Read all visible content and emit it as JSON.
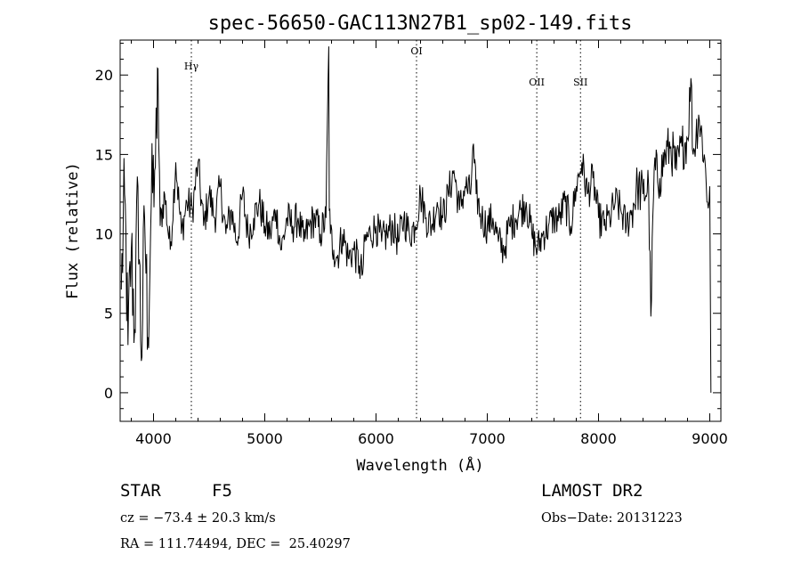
{
  "chart_data": {
    "type": "line",
    "title": "spec-56650-GAC113N27B1_sp02-149.fits",
    "xlabel": "Wavelength (Å)",
    "ylabel": "Flux (relative)",
    "xlim": [
      3700,
      9100
    ],
    "ylim": [
      -1.8,
      22.2
    ],
    "xticks": [
      4000,
      5000,
      6000,
      7000,
      8000,
      9000
    ],
    "yticks": [
      0,
      5,
      10,
      15,
      20
    ],
    "grid": false,
    "legend": "none",
    "line_color": "#000000",
    "lines": [
      {
        "label": "Hγ",
        "x": 4340
      },
      {
        "label": "OI",
        "x": 6364
      },
      {
        "label": "OII",
        "x": 7445
      },
      {
        "label": "SII",
        "x": 7838
      }
    ],
    "series": [
      {
        "x": [
          3710,
          3740,
          3770,
          3800,
          3830,
          3860,
          3890,
          3920,
          3950,
          3980,
          4010,
          4030,
          4040,
          4060,
          4100,
          4150,
          4200,
          4250,
          4300,
          4350,
          4400,
          4450,
          4500,
          4550,
          4600,
          4650,
          4700,
          4750,
          4800,
          4850,
          4900,
          4950,
          5000,
          5050,
          5100,
          5150,
          5200,
          5250,
          5300,
          5350,
          5400,
          5450,
          5500,
          5550,
          5575,
          5580,
          5590,
          5620,
          5650,
          5700,
          5750,
          5800,
          5850,
          5880,
          5900,
          5950,
          6000,
          6050,
          6100,
          6150,
          6200,
          6250,
          6300,
          6350,
          6400,
          6450,
          6500,
          6550,
          6600,
          6650,
          6700,
          6750,
          6800,
          6850,
          6870,
          6900,
          6950,
          7000,
          7050,
          7100,
          7150,
          7200,
          7250,
          7300,
          7350,
          7400,
          7450,
          7500,
          7550,
          7600,
          7650,
          7700,
          7750,
          7800,
          7850,
          7900,
          7950,
          8000,
          8050,
          8100,
          8150,
          8200,
          8250,
          8300,
          8350,
          8400,
          8450,
          8470,
          8500,
          8550,
          8600,
          8650,
          8700,
          8750,
          8800,
          8830,
          8850,
          8900,
          8950,
          8980,
          9000,
          9010
        ],
        "y": [
          6.5,
          12.5,
          3.0,
          9.0,
          4.0,
          13.0,
          2.0,
          11.0,
          3.5,
          12.0,
          14.0,
          16.0,
          20.4,
          10.5,
          12.5,
          9.0,
          14.5,
          10.0,
          12.0,
          11.5,
          14.5,
          10.5,
          12.5,
          11.0,
          13.0,
          10.0,
          11.5,
          9.5,
          12.5,
          10.0,
          11.0,
          12.0,
          10.5,
          10.0,
          11.5,
          9.0,
          11.0,
          10.5,
          11.0,
          9.5,
          10.5,
          11.0,
          10.0,
          11.0,
          21.8,
          11.5,
          10.0,
          9.0,
          8.5,
          10.0,
          8.5,
          9.0,
          8.0,
          7.5,
          9.5,
          10.0,
          10.5,
          9.5,
          10.0,
          10.5,
          9.5,
          11.0,
          10.0,
          10.5,
          12.5,
          11.0,
          10.5,
          12.0,
          11.0,
          12.5,
          14.0,
          11.5,
          13.0,
          12.5,
          15.5,
          12.5,
          11.0,
          10.5,
          11.0,
          9.5,
          9.0,
          10.5,
          11.0,
          11.5,
          12.0,
          10.0,
          9.0,
          10.0,
          10.5,
          11.0,
          11.0,
          12.0,
          10.5,
          13.0,
          14.5,
          12.5,
          13.5,
          11.0,
          10.5,
          11.0,
          12.0,
          11.5,
          10.5,
          11.5,
          13.0,
          12.5,
          13.0,
          4.8,
          14.0,
          13.5,
          15.0,
          15.5,
          14.0,
          15.5,
          16.0,
          19.8,
          15.0,
          17.5,
          15.0,
          12.0,
          13.0,
          0.0
        ]
      }
    ]
  },
  "info": {
    "class_label": "STAR",
    "subclass_label": "F5",
    "cz": "cz = −73.4 ± 20.3 km/s",
    "radec": "RA = 111.74494, DEC =  25.40297",
    "survey": "LAMOST DR2",
    "obs_date": "Obs−Date: 20131223"
  }
}
